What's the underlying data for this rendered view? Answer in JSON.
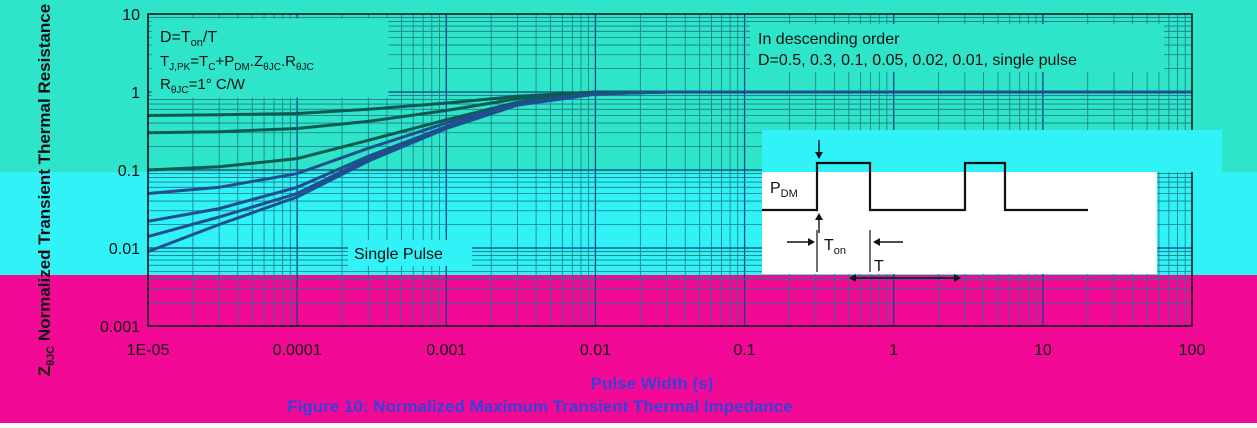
{
  "colors": {
    "band_top": "#2fe5c9",
    "band_mid": "#31f2f7",
    "band_bottom": "#f20a97",
    "grid_major": "#11428a",
    "grid_minor": "#1a7a82",
    "curve_dark": "#0e5a52",
    "curve_blue": "#1f4f8f",
    "ink": "#111111",
    "caption": "#3b3fd6"
  },
  "chart_data": {
    "type": "line",
    "x_scale": "log",
    "y_scale": "log",
    "xlim": [
      1e-05,
      100
    ],
    "ylim": [
      0.001,
      10
    ],
    "x_ticks": [
      "1E-05",
      "0.0001",
      "0.001",
      "0.01",
      "0.1",
      "1",
      "10",
      "100"
    ],
    "y_ticks": [
      "0.001",
      "0.01",
      "0.1",
      "1",
      "10"
    ],
    "xlabel": "Pulse Width (s)",
    "ylabel_main": "Z",
    "ylabel_sub": "θJC",
    "ylabel_rest": "Normalized Transient Thermal Resistance",
    "series": [
      {
        "name": "D=0.5",
        "x": [
          1e-05,
          3e-05,
          0.0001,
          0.0003,
          0.001,
          0.003,
          0.01,
          0.03,
          0.1,
          1,
          10,
          100
        ],
        "y": [
          0.5,
          0.51,
          0.53,
          0.6,
          0.72,
          0.88,
          1.0,
          1.0,
          1.0,
          1.0,
          1.0,
          1.0
        ]
      },
      {
        "name": "D=0.3",
        "x": [
          1e-05,
          3e-05,
          0.0001,
          0.0003,
          0.001,
          0.003,
          0.01,
          0.03,
          0.1,
          1,
          10,
          100
        ],
        "y": [
          0.3,
          0.31,
          0.34,
          0.42,
          0.58,
          0.82,
          0.99,
          1.0,
          1.0,
          1.0,
          1.0,
          1.0
        ]
      },
      {
        "name": "D=0.1",
        "x": [
          1e-05,
          3e-05,
          0.0001,
          0.0003,
          0.001,
          0.003,
          0.01,
          0.03,
          0.1,
          1,
          10,
          100
        ],
        "y": [
          0.1,
          0.11,
          0.14,
          0.24,
          0.44,
          0.74,
          0.97,
          1.0,
          1.0,
          1.0,
          1.0,
          1.0
        ]
      },
      {
        "name": "D=0.05",
        "x": [
          1e-05,
          3e-05,
          0.0001,
          0.0003,
          0.001,
          0.003,
          0.01,
          0.03,
          0.1,
          1,
          10,
          100
        ],
        "y": [
          0.05,
          0.06,
          0.09,
          0.19,
          0.4,
          0.72,
          0.96,
          1.0,
          1.0,
          1.0,
          1.0,
          1.0
        ]
      },
      {
        "name": "D=0.02",
        "x": [
          1e-05,
          3e-05,
          0.0001,
          0.0003,
          0.001,
          0.003,
          0.01,
          0.03,
          0.1,
          1,
          10,
          100
        ],
        "y": [
          0.022,
          0.032,
          0.06,
          0.15,
          0.36,
          0.7,
          0.95,
          1.0,
          1.0,
          1.0,
          1.0,
          1.0
        ]
      },
      {
        "name": "D=0.01",
        "x": [
          1e-05,
          3e-05,
          0.0001,
          0.0003,
          0.001,
          0.003,
          0.01,
          0.03,
          0.1,
          1,
          10,
          100
        ],
        "y": [
          0.014,
          0.025,
          0.05,
          0.14,
          0.35,
          0.69,
          0.95,
          1.0,
          1.0,
          1.0,
          1.0,
          1.0
        ]
      },
      {
        "name": "single pulse",
        "x": [
          1e-05,
          3e-05,
          0.0001,
          0.0003,
          0.001,
          0.003,
          0.01,
          0.03,
          0.1,
          1,
          10,
          100
        ],
        "y": [
          0.009,
          0.02,
          0.045,
          0.13,
          0.34,
          0.68,
          0.94,
          1.0,
          1.0,
          1.0,
          1.0,
          1.0
        ]
      }
    ],
    "annotations": {
      "formula_d_pre": "D=T",
      "formula_d_sub": "on",
      "formula_d_post": "/T",
      "formula_tj": "T",
      "formula_tj_sub": "J,PK",
      "formula_tj_mid": "=T",
      "formula_tc_sub": "C",
      "formula_plus": "+P",
      "formula_pdm_sub": "DM",
      "formula_z": ".Z",
      "formula_z_sub": "θJC",
      "formula_r": ".R",
      "formula_r_sub": "θJC",
      "formula_rth": "R",
      "formula_rth_sub": "θJC",
      "formula_rth_val": "=1°  C/W",
      "order_line1": "In descending order",
      "order_line2": "D=0.5, 0.3, 0.1, 0.05, 0.02, 0.01, single pulse",
      "single_pulse": "Single Pulse",
      "pdm": "P",
      "pdm_sub": "DM",
      "ton": "T",
      "ton_sub": "on",
      "t_period": "T"
    }
  },
  "caption": "Figure 10: Normalized Maximum Transient Thermal Impedance"
}
